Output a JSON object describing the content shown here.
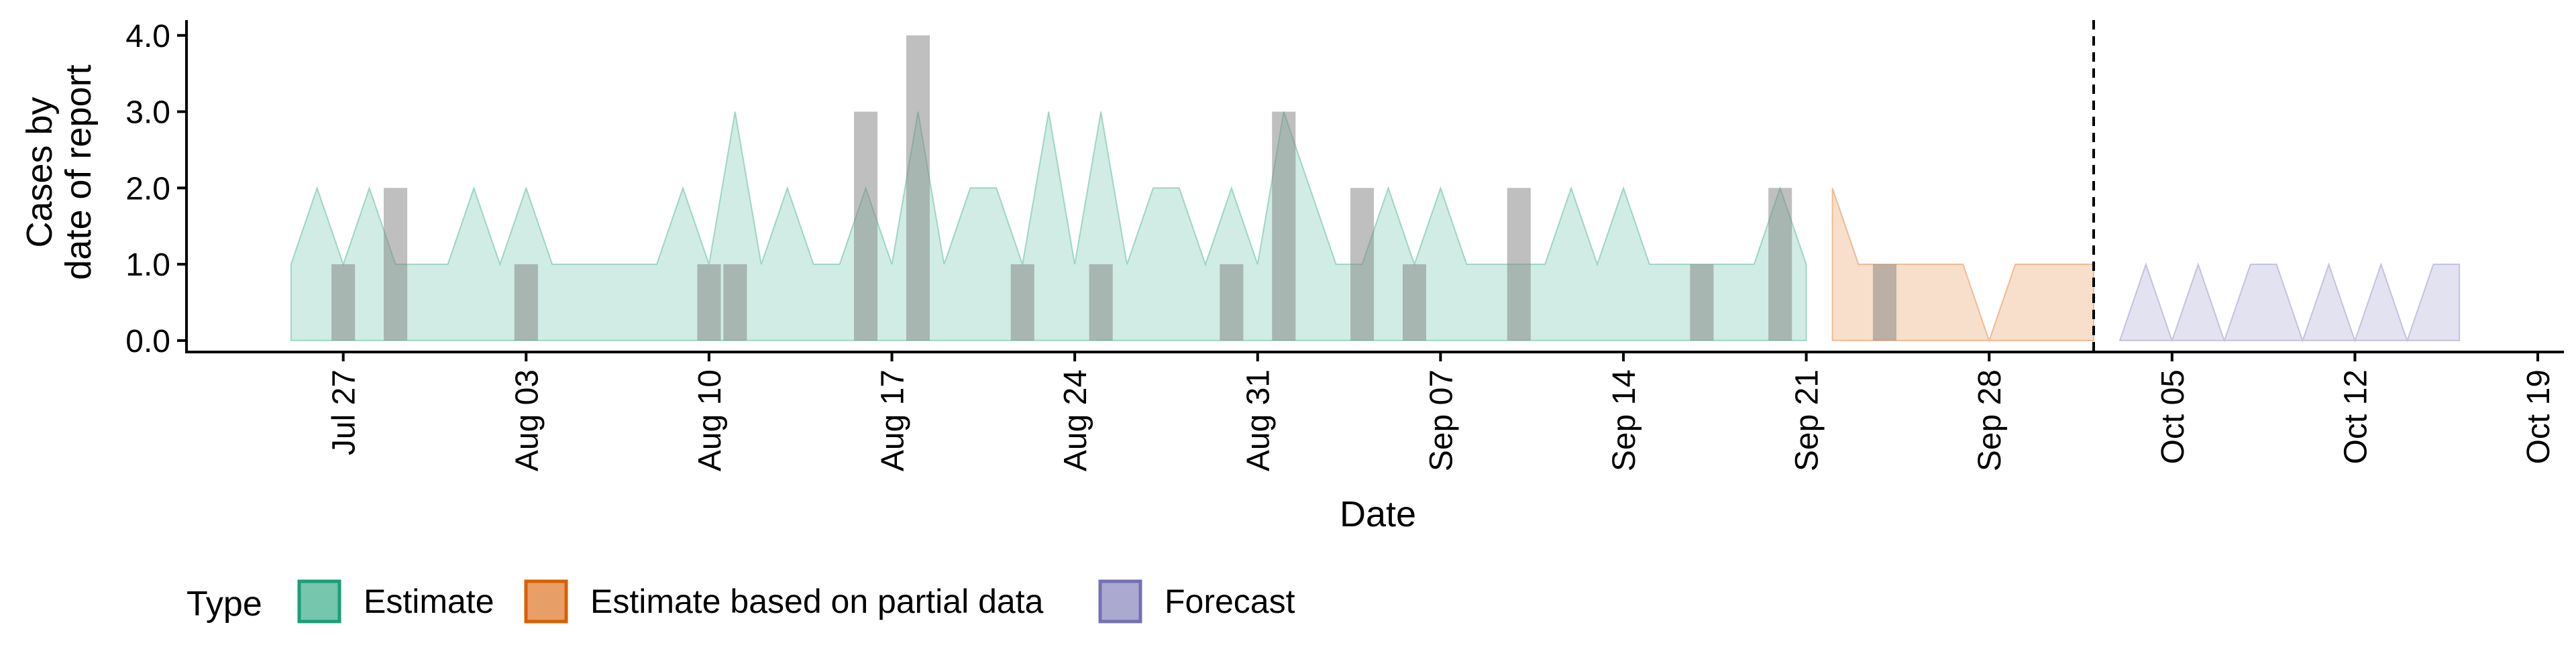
{
  "chart_data": {
    "type": "area",
    "title": "",
    "xlabel": "Date",
    "ylabel_lines": [
      "Cases by",
      "date of report"
    ],
    "x_axis": {
      "type": "date",
      "range": [
        "2020-07-21",
        "2020-10-20"
      ],
      "ticks": [
        {
          "date": "2020-07-27",
          "label": "Jul 27"
        },
        {
          "date": "2020-08-03",
          "label": "Aug 03"
        },
        {
          "date": "2020-08-10",
          "label": "Aug 10"
        },
        {
          "date": "2020-08-17",
          "label": "Aug 17"
        },
        {
          "date": "2020-08-24",
          "label": "Aug 24"
        },
        {
          "date": "2020-08-31",
          "label": "Aug 31"
        },
        {
          "date": "2020-09-07",
          "label": "Sep 07"
        },
        {
          "date": "2020-09-14",
          "label": "Sep 14"
        },
        {
          "date": "2020-09-21",
          "label": "Sep 21"
        },
        {
          "date": "2020-09-28",
          "label": "Sep 28"
        },
        {
          "date": "2020-10-05",
          "label": "Oct 05"
        },
        {
          "date": "2020-10-12",
          "label": "Oct 12"
        },
        {
          "date": "2020-10-19",
          "label": "Oct 19"
        }
      ]
    },
    "y_axis": {
      "range": [
        -0.15,
        4.2
      ],
      "ticks": [
        {
          "value": 0,
          "label": "0.0"
        },
        {
          "value": 1,
          "label": "1.0"
        },
        {
          "value": 2,
          "label": "2.0"
        },
        {
          "value": 3,
          "label": "3.0"
        },
        {
          "value": 4,
          "label": "4.0"
        }
      ]
    },
    "vline_date": "2020-10-02",
    "legend": {
      "title": "Type",
      "position": "bottom-left"
    },
    "series": [
      {
        "name": "Estimate",
        "color": "#1B9E77",
        "fill_opacity": 0.2,
        "lower": 0,
        "upper": [
          {
            "date": "2020-07-25",
            "value": 1
          },
          {
            "date": "2020-07-26",
            "value": 2
          },
          {
            "date": "2020-07-27",
            "value": 1
          },
          {
            "date": "2020-07-28",
            "value": 2
          },
          {
            "date": "2020-07-29",
            "value": 1
          },
          {
            "date": "2020-07-30",
            "value": 1
          },
          {
            "date": "2020-07-31",
            "value": 1
          },
          {
            "date": "2020-08-01",
            "value": 2
          },
          {
            "date": "2020-08-02",
            "value": 1
          },
          {
            "date": "2020-08-03",
            "value": 2
          },
          {
            "date": "2020-08-04",
            "value": 1
          },
          {
            "date": "2020-08-05",
            "value": 1
          },
          {
            "date": "2020-08-06",
            "value": 1
          },
          {
            "date": "2020-08-07",
            "value": 1
          },
          {
            "date": "2020-08-08",
            "value": 1
          },
          {
            "date": "2020-08-09",
            "value": 2
          },
          {
            "date": "2020-08-10",
            "value": 1
          },
          {
            "date": "2020-08-11",
            "value": 3
          },
          {
            "date": "2020-08-12",
            "value": 1
          },
          {
            "date": "2020-08-13",
            "value": 2
          },
          {
            "date": "2020-08-14",
            "value": 1
          },
          {
            "date": "2020-08-15",
            "value": 1
          },
          {
            "date": "2020-08-16",
            "value": 2
          },
          {
            "date": "2020-08-17",
            "value": 1
          },
          {
            "date": "2020-08-18",
            "value": 3
          },
          {
            "date": "2020-08-19",
            "value": 1
          },
          {
            "date": "2020-08-20",
            "value": 2
          },
          {
            "date": "2020-08-21",
            "value": 2
          },
          {
            "date": "2020-08-22",
            "value": 1
          },
          {
            "date": "2020-08-23",
            "value": 3
          },
          {
            "date": "2020-08-24",
            "value": 1
          },
          {
            "date": "2020-08-25",
            "value": 3
          },
          {
            "date": "2020-08-26",
            "value": 1
          },
          {
            "date": "2020-08-27",
            "value": 2
          },
          {
            "date": "2020-08-28",
            "value": 2
          },
          {
            "date": "2020-08-29",
            "value": 1
          },
          {
            "date": "2020-08-30",
            "value": 2
          },
          {
            "date": "2020-08-31",
            "value": 1
          },
          {
            "date": "2020-09-01",
            "value": 3
          },
          {
            "date": "2020-09-02",
            "value": 2
          },
          {
            "date": "2020-09-03",
            "value": 1
          },
          {
            "date": "2020-09-04",
            "value": 1
          },
          {
            "date": "2020-09-05",
            "value": 2
          },
          {
            "date": "2020-09-06",
            "value": 1
          },
          {
            "date": "2020-09-07",
            "value": 2
          },
          {
            "date": "2020-09-08",
            "value": 1
          },
          {
            "date": "2020-09-09",
            "value": 1
          },
          {
            "date": "2020-09-10",
            "value": 1
          },
          {
            "date": "2020-09-11",
            "value": 1
          },
          {
            "date": "2020-09-12",
            "value": 2
          },
          {
            "date": "2020-09-13",
            "value": 1
          },
          {
            "date": "2020-09-14",
            "value": 2
          },
          {
            "date": "2020-09-15",
            "value": 1
          },
          {
            "date": "2020-09-16",
            "value": 1
          },
          {
            "date": "2020-09-17",
            "value": 1
          },
          {
            "date": "2020-09-18",
            "value": 1
          },
          {
            "date": "2020-09-19",
            "value": 1
          },
          {
            "date": "2020-09-20",
            "value": 2
          },
          {
            "date": "2020-09-21",
            "value": 1
          }
        ]
      },
      {
        "name": "Estimate based on partial data",
        "color": "#D95F02",
        "fill_opacity": 0.2,
        "lower": 0,
        "upper": [
          {
            "date": "2020-09-22",
            "value": 2
          },
          {
            "date": "2020-09-23",
            "value": 1
          },
          {
            "date": "2020-09-24",
            "value": 1
          },
          {
            "date": "2020-09-25",
            "value": 1
          },
          {
            "date": "2020-09-26",
            "value": 1
          },
          {
            "date": "2020-09-27",
            "value": 1
          },
          {
            "date": "2020-09-28",
            "value": 0
          },
          {
            "date": "2020-09-29",
            "value": 1
          },
          {
            "date": "2020-09-30",
            "value": 1
          },
          {
            "date": "2020-10-01",
            "value": 1
          },
          {
            "date": "2020-10-02",
            "value": 1
          }
        ]
      },
      {
        "name": "Forecast",
        "color": "#7570B3",
        "fill_opacity": 0.2,
        "lower": 0,
        "upper": [
          {
            "date": "2020-10-03",
            "value": 0
          },
          {
            "date": "2020-10-04",
            "value": 1
          },
          {
            "date": "2020-10-05",
            "value": 0
          },
          {
            "date": "2020-10-06",
            "value": 1
          },
          {
            "date": "2020-10-07",
            "value": 0
          },
          {
            "date": "2020-10-08",
            "value": 1
          },
          {
            "date": "2020-10-09",
            "value": 1
          },
          {
            "date": "2020-10-10",
            "value": 0
          },
          {
            "date": "2020-10-11",
            "value": 1
          },
          {
            "date": "2020-10-12",
            "value": 0
          },
          {
            "date": "2020-10-13",
            "value": 1
          },
          {
            "date": "2020-10-14",
            "value": 0
          },
          {
            "date": "2020-10-15",
            "value": 1
          },
          {
            "date": "2020-10-16",
            "value": 1
          }
        ]
      }
    ],
    "reported_cases": {
      "color": "#808080",
      "opacity": 0.5,
      "bars": [
        {
          "date": "2020-07-27",
          "value": 1
        },
        {
          "date": "2020-07-29",
          "value": 2
        },
        {
          "date": "2020-08-03",
          "value": 1
        },
        {
          "date": "2020-08-10",
          "value": 1
        },
        {
          "date": "2020-08-11",
          "value": 1
        },
        {
          "date": "2020-08-16",
          "value": 3
        },
        {
          "date": "2020-08-18",
          "value": 4
        },
        {
          "date": "2020-08-22",
          "value": 1
        },
        {
          "date": "2020-08-25",
          "value": 1
        },
        {
          "date": "2020-08-30",
          "value": 1
        },
        {
          "date": "2020-09-01",
          "value": 3
        },
        {
          "date": "2020-09-04",
          "value": 2
        },
        {
          "date": "2020-09-06",
          "value": 1
        },
        {
          "date": "2020-09-10",
          "value": 2
        },
        {
          "date": "2020-09-17",
          "value": 1
        },
        {
          "date": "2020-09-20",
          "value": 2
        },
        {
          "date": "2020-09-24",
          "value": 1
        }
      ]
    }
  }
}
